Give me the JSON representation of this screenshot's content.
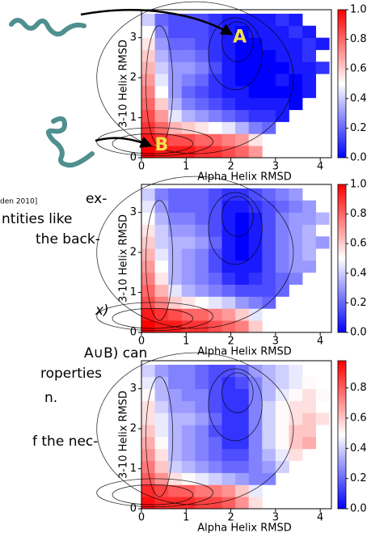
{
  "text_fragments": [
    ")",
    "den 2010]",
    "ex-",
    "ntities like",
    "the back-",
    "x)",
    "A∪B) can",
    "roperties",
    "n.",
    "f the nec-"
  ],
  "chart_data": [
    {
      "type": "heatmap",
      "xlabel": "Alpha Helix RMSD",
      "ylabel": "3-10 Helix RMSD",
      "annotations": [
        "A",
        "B"
      ],
      "xlim": [
        0,
        4.25
      ],
      "ylim": [
        0,
        3.7
      ],
      "xticks": [
        0,
        1,
        2,
        3,
        4
      ],
      "yticks": [
        0,
        1,
        2,
        3
      ],
      "xbins": [
        0,
        0.3,
        0.6,
        0.9,
        1.2,
        1.5,
        1.8,
        2.1,
        2.4,
        2.7,
        3.0,
        3.3,
        3.6,
        3.9,
        4.2
      ],
      "ybins": [
        0,
        0.3,
        0.6,
        0.9,
        1.2,
        1.5,
        1.8,
        2.1,
        2.4,
        2.7,
        3.0,
        3.3,
        3.6
      ],
      "colormap": "bwr",
      "clim": [
        0,
        1.0
      ],
      "cticks": [
        {
          "value": 0,
          "label": "0.0"
        },
        0.2,
        0.4,
        0.6,
        0.8,
        {
          "value": 1,
          "label": "1.0"
        }
      ],
      "z": [
        [
          1.0,
          0.95,
          0.95,
          0.95,
          0.9,
          0.9,
          0.85,
          0.8,
          0.7,
          null,
          null,
          null,
          null,
          null
        ],
        [
          0.95,
          0.9,
          0.85,
          0.85,
          0.8,
          0.8,
          0.75,
          0.7,
          0.55,
          null,
          null,
          null,
          null,
          null
        ],
        [
          0.9,
          0.8,
          0.65,
          0.6,
          0.55,
          0.5,
          0.45,
          0.35,
          0.25,
          0.2,
          null,
          null,
          null,
          null
        ],
        [
          0.85,
          0.7,
          0.45,
          0.35,
          0.3,
          0.25,
          0.2,
          0.15,
          0.1,
          0.1,
          0.05,
          null,
          null,
          null
        ],
        [
          0.8,
          0.6,
          0.35,
          0.25,
          0.2,
          0.15,
          0.1,
          0.05,
          0.05,
          0.05,
          0.05,
          0.0,
          null,
          null
        ],
        [
          0.75,
          0.5,
          0.3,
          0.2,
          0.15,
          0.1,
          0.05,
          0.05,
          0.0,
          0.0,
          0.0,
          0.0,
          0.05,
          null
        ],
        [
          0.7,
          0.45,
          0.3,
          0.25,
          0.2,
          0.1,
          0.05,
          0.0,
          0.0,
          0.0,
          0.05,
          0.0,
          0.05,
          null
        ],
        [
          0.65,
          0.4,
          0.3,
          0.3,
          0.25,
          0.15,
          0.05,
          0.0,
          0.0,
          0.0,
          0.0,
          0.05,
          0.05,
          0.1
        ],
        [
          0.6,
          0.35,
          0.25,
          0.25,
          0.2,
          0.1,
          0.05,
          0.0,
          0.0,
          0.0,
          0.05,
          0.05,
          0.1,
          null
        ],
        [
          0.55,
          0.3,
          0.2,
          0.2,
          0.15,
          0.1,
          0.05,
          0.0,
          0.0,
          0.05,
          0.05,
          0.05,
          0.1,
          0.05
        ],
        [
          0.5,
          0.25,
          0.15,
          0.15,
          0.15,
          0.1,
          0.05,
          0.0,
          0.05,
          0.05,
          0.05,
          0.1,
          0.05,
          null
        ],
        [
          0.4,
          0.2,
          0.15,
          0.15,
          0.15,
          0.1,
          0.05,
          0.05,
          0.05,
          0.05,
          0.1,
          0.05,
          null,
          null
        ]
      ]
    },
    {
      "type": "heatmap",
      "xlabel": "Alpha Helix RMSD",
      "ylabel": "3-10 Helix RMSD",
      "xlim": [
        0,
        4.25
      ],
      "ylim": [
        0,
        3.7
      ],
      "xticks": [
        0,
        1,
        2,
        3,
        4
      ],
      "yticks": [
        0,
        1,
        2,
        3
      ],
      "xbins": [
        0,
        0.3,
        0.6,
        0.9,
        1.2,
        1.5,
        1.8,
        2.1,
        2.4,
        2.7,
        3.0,
        3.3,
        3.6,
        3.9,
        4.2
      ],
      "ybins": [
        0,
        0.3,
        0.6,
        0.9,
        1.2,
        1.5,
        1.8,
        2.1,
        2.4,
        2.7,
        3.0,
        3.3,
        3.6
      ],
      "colormap": "bwr",
      "clim": [
        0,
        1.0
      ],
      "cticks": [
        {
          "value": 0,
          "label": "0.0"
        },
        0.2,
        0.4,
        0.6,
        0.8,
        {
          "value": 1,
          "label": "1.0"
        }
      ],
      "z": [
        [
          1.0,
          0.95,
          0.95,
          0.9,
          0.9,
          0.85,
          0.8,
          0.75,
          0.6,
          null,
          null,
          null,
          null,
          null
        ],
        [
          0.95,
          0.9,
          0.85,
          0.8,
          0.8,
          0.75,
          0.7,
          0.6,
          0.45,
          null,
          null,
          null,
          null,
          null
        ],
        [
          0.85,
          0.75,
          0.6,
          0.55,
          0.5,
          0.45,
          0.4,
          0.3,
          0.25,
          0.2,
          null,
          null,
          null,
          null
        ],
        [
          0.8,
          0.65,
          0.45,
          0.35,
          0.3,
          0.25,
          0.2,
          0.15,
          0.15,
          0.15,
          0.2,
          null,
          null,
          null
        ],
        [
          0.75,
          0.55,
          0.35,
          0.3,
          0.25,
          0.2,
          0.1,
          0.05,
          0.1,
          0.15,
          0.2,
          0.25,
          null,
          null
        ],
        [
          0.7,
          0.5,
          0.35,
          0.3,
          0.25,
          0.15,
          0.05,
          0.05,
          0.05,
          0.15,
          0.25,
          0.3,
          0.3,
          null
        ],
        [
          0.65,
          0.45,
          0.35,
          0.3,
          0.25,
          0.15,
          0.05,
          0.0,
          0.05,
          0.15,
          0.25,
          0.3,
          0.35,
          null
        ],
        [
          0.6,
          0.4,
          0.35,
          0.35,
          0.3,
          0.2,
          0.05,
          0.0,
          0.05,
          0.15,
          0.25,
          0.3,
          0.35,
          0.3
        ],
        [
          0.55,
          0.4,
          0.3,
          0.3,
          0.25,
          0.15,
          0.05,
          0.0,
          0.05,
          0.15,
          0.25,
          0.3,
          0.35,
          null
        ],
        [
          0.5,
          0.35,
          0.25,
          0.25,
          0.2,
          0.15,
          0.05,
          0.0,
          0.05,
          0.15,
          0.25,
          0.3,
          0.3,
          0.35
        ],
        [
          0.45,
          0.3,
          0.2,
          0.2,
          0.2,
          0.15,
          0.05,
          0.05,
          0.1,
          0.15,
          0.2,
          0.25,
          0.3,
          null
        ],
        [
          0.4,
          0.25,
          0.2,
          0.2,
          0.2,
          0.15,
          0.1,
          0.1,
          0.15,
          0.2,
          0.25,
          0.3,
          null,
          null
        ]
      ]
    },
    {
      "type": "heatmap",
      "xlabel": "Alpha Helix RMSD",
      "ylabel": "3-10 Helix RMSD",
      "xlim": [
        0,
        4.25
      ],
      "ylim": [
        0,
        3.7
      ],
      "xticks": [
        0,
        1,
        2,
        3,
        4
      ],
      "yticks": [
        0,
        1,
        2,
        3
      ],
      "xbins": [
        0,
        0.3,
        0.6,
        0.9,
        1.2,
        1.5,
        1.8,
        2.1,
        2.4,
        2.7,
        3.0,
        3.3,
        3.6,
        3.9,
        4.2
      ],
      "ybins": [
        0,
        0.3,
        0.6,
        0.9,
        1.2,
        1.5,
        1.8,
        2.1,
        2.4,
        2.7,
        3.0,
        3.3,
        3.6
      ],
      "colormap": "bwr",
      "clim": [
        0,
        0.98
      ],
      "cticks": [
        {
          "value": 0,
          "label": "0.0"
        },
        0.2,
        0.4,
        0.6,
        0.8
      ],
      "z": [
        [
          0.95,
          0.9,
          0.9,
          0.9,
          0.85,
          0.85,
          0.8,
          0.7,
          0.55,
          null,
          null,
          null,
          null,
          null
        ],
        [
          0.9,
          0.85,
          0.8,
          0.8,
          0.75,
          0.75,
          0.7,
          0.6,
          0.45,
          null,
          null,
          null,
          null,
          null
        ],
        [
          0.8,
          0.7,
          0.55,
          0.5,
          0.45,
          0.4,
          0.35,
          0.3,
          0.25,
          0.25,
          null,
          null,
          null,
          null
        ],
        [
          0.75,
          0.6,
          0.4,
          0.35,
          0.3,
          0.25,
          0.2,
          0.2,
          0.25,
          0.3,
          0.4,
          null,
          null,
          null
        ],
        [
          0.7,
          0.55,
          0.35,
          0.3,
          0.25,
          0.2,
          0.15,
          0.15,
          0.25,
          0.35,
          0.45,
          0.55,
          null,
          null
        ],
        [
          0.65,
          0.5,
          0.35,
          0.3,
          0.25,
          0.2,
          0.1,
          0.1,
          0.25,
          0.4,
          0.5,
          0.6,
          0.65,
          null
        ],
        [
          0.6,
          0.45,
          0.35,
          0.3,
          0.25,
          0.15,
          0.1,
          0.1,
          0.25,
          0.4,
          0.5,
          0.6,
          0.6,
          null
        ],
        [
          0.55,
          0.45,
          0.35,
          0.35,
          0.3,
          0.2,
          0.1,
          0.1,
          0.25,
          0.4,
          0.5,
          0.55,
          0.6,
          0.55
        ],
        [
          0.55,
          0.4,
          0.3,
          0.3,
          0.25,
          0.15,
          0.1,
          0.1,
          0.25,
          0.4,
          0.5,
          0.55,
          0.55,
          null
        ],
        [
          0.5,
          0.35,
          0.3,
          0.25,
          0.25,
          0.15,
          0.1,
          0.1,
          0.25,
          0.35,
          0.45,
          0.5,
          0.55,
          0.5
        ],
        [
          0.45,
          0.35,
          0.25,
          0.25,
          0.2,
          0.15,
          0.1,
          0.15,
          0.25,
          0.35,
          0.4,
          0.45,
          0.5,
          null
        ],
        [
          0.4,
          0.3,
          0.25,
          0.25,
          0.2,
          0.15,
          0.15,
          0.2,
          0.3,
          0.35,
          0.4,
          0.45,
          null,
          null
        ]
      ]
    }
  ]
}
